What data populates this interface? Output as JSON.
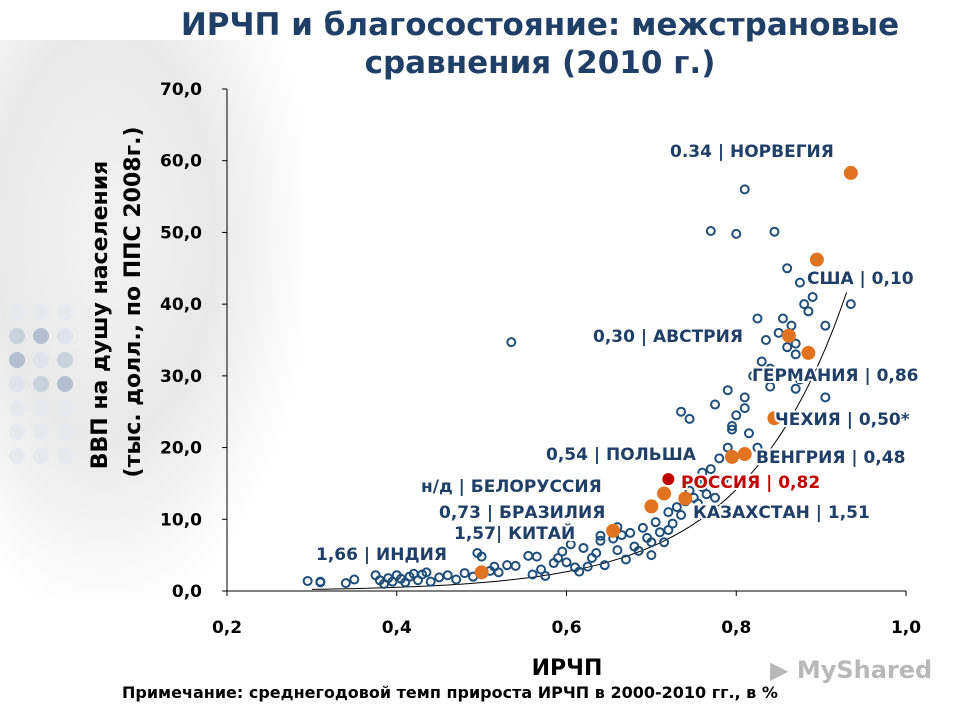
{
  "title_line1": "ИРЧП и благосостояние: межстрановые",
  "title_line2": "сравнения (2010 г.)",
  "note": "Примечание:  среднегодовой темп прироста ИРЧП в 2000-2010 гг., в %",
  "watermark": "MyShared",
  "colors": {
    "title": "#1f3f66",
    "points": "#1f4e79",
    "highlight": "#e0731f",
    "russia": "#c00000",
    "annotation": "#1f3f66"
  },
  "chart_data": {
    "type": "scatter",
    "xlabel": "ИРЧП",
    "ylabel_line1": "ВВП на душу населения",
    "ylabel_line2": "(тыс. долл., по ППС 2008г.)",
    "xlim": [
      0.2,
      1.0
    ],
    "ylim": [
      0,
      70
    ],
    "x_ticks": [
      "0,2",
      "0,4",
      "0,6",
      "0,8",
      "1,0"
    ],
    "y_ticks": [
      "0,0",
      "10,0",
      "20,0",
      "30,0",
      "40,0",
      "50,0",
      "60,0",
      "70,0"
    ],
    "grid": false,
    "trendline": "exponential",
    "series": [
      {
        "name": "countries",
        "points": [
          [
            0.295,
            1.4
          ],
          [
            0.31,
            1.2
          ],
          [
            0.31,
            1.3
          ],
          [
            0.34,
            1.1
          ],
          [
            0.35,
            1.6
          ],
          [
            0.375,
            2.2
          ],
          [
            0.38,
            1.5
          ],
          [
            0.385,
            1.0
          ],
          [
            0.39,
            1.8
          ],
          [
            0.395,
            1.3
          ],
          [
            0.4,
            2.2
          ],
          [
            0.405,
            1.7
          ],
          [
            0.41,
            1.2
          ],
          [
            0.415,
            2.0
          ],
          [
            0.42,
            2.4
          ],
          [
            0.425,
            1.5
          ],
          [
            0.43,
            2.3
          ],
          [
            0.435,
            2.6
          ],
          [
            0.44,
            1.3
          ],
          [
            0.45,
            1.9
          ],
          [
            0.46,
            2.2
          ],
          [
            0.47,
            1.6
          ],
          [
            0.48,
            2.5
          ],
          [
            0.49,
            2.0
          ],
          [
            0.495,
            5.3
          ],
          [
            0.5,
            4.8
          ],
          [
            0.51,
            2.8
          ],
          [
            0.515,
            3.4
          ],
          [
            0.52,
            2.6
          ],
          [
            0.53,
            3.6
          ],
          [
            0.54,
            3.5
          ],
          [
            0.555,
            4.9
          ],
          [
            0.56,
            2.3
          ],
          [
            0.565,
            4.8
          ],
          [
            0.57,
            3.0
          ],
          [
            0.575,
            2.1
          ],
          [
            0.585,
            3.9
          ],
          [
            0.59,
            4.6
          ],
          [
            0.595,
            5.5
          ],
          [
            0.6,
            4.0
          ],
          [
            0.605,
            6.5
          ],
          [
            0.61,
            3.3
          ],
          [
            0.615,
            2.7
          ],
          [
            0.62,
            6.0
          ],
          [
            0.625,
            3.4
          ],
          [
            0.63,
            4.6
          ],
          [
            0.635,
            5.3
          ],
          [
            0.64,
            7.0
          ],
          [
            0.645,
            3.6
          ],
          [
            0.655,
            7.3
          ],
          [
            0.66,
            5.7
          ],
          [
            0.665,
            7.8
          ],
          [
            0.67,
            4.4
          ],
          [
            0.675,
            8.1
          ],
          [
            0.68,
            6.2
          ],
          [
            0.685,
            5.6
          ],
          [
            0.69,
            8.8
          ],
          [
            0.695,
            7.4
          ],
          [
            0.7,
            5.0
          ],
          [
            0.705,
            9.6
          ],
          [
            0.71,
            8.2
          ],
          [
            0.715,
            6.8
          ],
          [
            0.72,
            11.0
          ],
          [
            0.725,
            9.4
          ],
          [
            0.73,
            11.7
          ],
          [
            0.735,
            10.6
          ],
          [
            0.74,
            12.5
          ],
          [
            0.745,
            14.0
          ],
          [
            0.75,
            13.0
          ],
          [
            0.755,
            15.0
          ],
          [
            0.76,
            16.5
          ],
          [
            0.765,
            13.5
          ],
          [
            0.77,
            17.0
          ],
          [
            0.78,
            18.5
          ],
          [
            0.79,
            20.0
          ],
          [
            0.795,
            23.0
          ],
          [
            0.8,
            24.5
          ],
          [
            0.81,
            27.0
          ],
          [
            0.815,
            22.0
          ],
          [
            0.82,
            30.0
          ],
          [
            0.83,
            32.0
          ],
          [
            0.835,
            35.0
          ],
          [
            0.84,
            31.0
          ],
          [
            0.85,
            36.0
          ],
          [
            0.855,
            38.0
          ],
          [
            0.86,
            34.0
          ],
          [
            0.865,
            37.0
          ],
          [
            0.87,
            33.0
          ],
          [
            0.88,
            40.0
          ],
          [
            0.885,
            39.0
          ],
          [
            0.89,
            41.0
          ],
          [
            0.895,
            46.0
          ],
          [
            0.935,
            40.0
          ],
          [
            0.81,
            56.0
          ],
          [
            0.77,
            50.2
          ],
          [
            0.8,
            49.8
          ],
          [
            0.845,
            50.1
          ],
          [
            0.535,
            34.7
          ],
          [
            0.735,
            25.0
          ],
          [
            0.745,
            24.0
          ],
          [
            0.775,
            26.0
          ],
          [
            0.79,
            28.0
          ],
          [
            0.81,
            25.5
          ],
          [
            0.795,
            22.5
          ],
          [
            0.825,
            20.0
          ],
          [
            0.84,
            28.5
          ],
          [
            0.87,
            28.2
          ],
          [
            0.875,
            29.5
          ],
          [
            0.86,
            45.0
          ],
          [
            0.875,
            43.0
          ],
          [
            0.905,
            37.0
          ],
          [
            0.825,
            38.0
          ],
          [
            0.87,
            34.5
          ],
          [
            0.905,
            27.0
          ],
          [
            0.76,
            14.5
          ],
          [
            0.755,
            12.2
          ],
          [
            0.775,
            13.0
          ],
          [
            0.785,
            15.5
          ],
          [
            0.7,
            6.8
          ],
          [
            0.72,
            8.5
          ],
          [
            0.66,
            8.9
          ],
          [
            0.64,
            7.7
          ]
        ]
      },
      {
        "name": "highlighted",
        "points": [
          [
            0.935,
            58.3
          ],
          [
            0.895,
            46.2
          ],
          [
            0.862,
            35.6
          ],
          [
            0.885,
            33.2
          ],
          [
            0.845,
            24.1
          ],
          [
            0.795,
            18.7
          ],
          [
            0.81,
            19.1
          ],
          [
            0.715,
            13.6
          ],
          [
            0.7,
            11.8
          ],
          [
            0.74,
            12.9
          ],
          [
            0.655,
            8.4
          ],
          [
            0.5,
            2.6
          ]
        ]
      },
      {
        "name": "Россия",
        "points": [
          [
            0.72,
            15.6
          ]
        ]
      }
    ],
    "annotations": [
      {
        "text": "0.34 | НОРВЕГИЯ",
        "color": "#1f3f66"
      },
      {
        "text": "США | 0,10",
        "color": "#1f3f66"
      },
      {
        "text": "0,30 | АВСТРИЯ",
        "color": "#1f3f66"
      },
      {
        "text": "ГЕРМАНИЯ | 0,86",
        "color": "#1f3f66"
      },
      {
        "text": "ЧЕХИЯ | 0,50*",
        "color": "#1f3f66"
      },
      {
        "text": "0,54 | ПОЛЬША",
        "color": "#1f3f66"
      },
      {
        "text": "ВЕНГРИЯ | 0,48",
        "color": "#1f3f66"
      },
      {
        "text": "РОССИЯ | 0,82",
        "color": "#c00000"
      },
      {
        "text": "н/д | БЕЛОРУССИЯ",
        "color": "#1f3f66"
      },
      {
        "text": "0,73 | БРАЗИЛИЯ",
        "color": "#1f3f66"
      },
      {
        "text": "КАЗАХСТАН | 1,51",
        "color": "#1f3f66"
      },
      {
        "text": "1,57| КИТАЙ",
        "color": "#1f3f66"
      },
      {
        "text": "1,66 | ИНДИЯ",
        "color": "#1f3f66"
      }
    ]
  }
}
